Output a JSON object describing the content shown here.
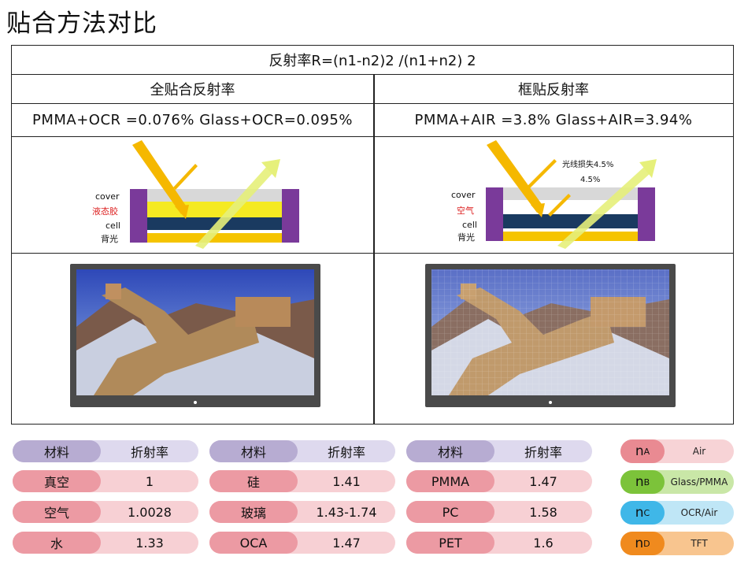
{
  "page_title": "贴合方法对比",
  "formula": "反射率R=(n1-n2)2  /(n1+n2) 2",
  "left": {
    "heading": "全贴合反射率",
    "values": "PMMA+OCR =0.076%   Glass+OCR=0.095%",
    "layers": [
      "cover",
      "液态胶",
      "cell",
      "背光"
    ]
  },
  "right": {
    "heading": "框贴反射率",
    "values": "PMMA+AIR =3.8%   Glass+AIR=3.94%",
    "layers": [
      "cover",
      "空气",
      "cell",
      "背光"
    ],
    "loss_note": "光线损失4.5%",
    "loss_value": "4.5%"
  },
  "tables": [
    {
      "header": [
        "材料",
        "折射率"
      ],
      "rows": [
        [
          "真空",
          "1"
        ],
        [
          "空气",
          "1.0028"
        ],
        [
          "水",
          "1.33"
        ]
      ]
    },
    {
      "header": [
        "材料",
        "折射率"
      ],
      "rows": [
        [
          "硅",
          "1.41"
        ],
        [
          "玻璃",
          "1.43-1.74"
        ],
        [
          "OCA",
          "1.47"
        ]
      ]
    },
    {
      "header": [
        "材料",
        "折射率"
      ],
      "rows": [
        [
          "PMMA",
          "1.47"
        ],
        [
          "PC",
          "1.58"
        ],
        [
          "PET",
          "1.6"
        ]
      ]
    }
  ],
  "legend": [
    {
      "symbol": "n",
      "sub": "A",
      "label": "Air",
      "dark": "#e98a92",
      "light": "#f7d3d6"
    },
    {
      "symbol": "n",
      "sub": "B",
      "label": "Glass/PMMA",
      "dark": "#7cc33a",
      "light": "#c9e7a7"
    },
    {
      "symbol": "n",
      "sub": "C",
      "label": "OCR/Air",
      "dark": "#3fb7e8",
      "light": "#bfe6f6"
    },
    {
      "symbol": "n",
      "sub": "D",
      "label": "TFT",
      "dark": "#f08a1e",
      "light": "#f8c58f"
    }
  ],
  "colors": {
    "header_dark": "#b7acd2",
    "header_light": "#ded9ee",
    "row_dark": "#ec9aa3",
    "row_light": "#f7d0d4",
    "cover": "#d8d8d8",
    "glue": "#f5ea22",
    "cell": "#1a3a60",
    "backlight": "#f5c400",
    "frame": "#7a3a9a"
  }
}
